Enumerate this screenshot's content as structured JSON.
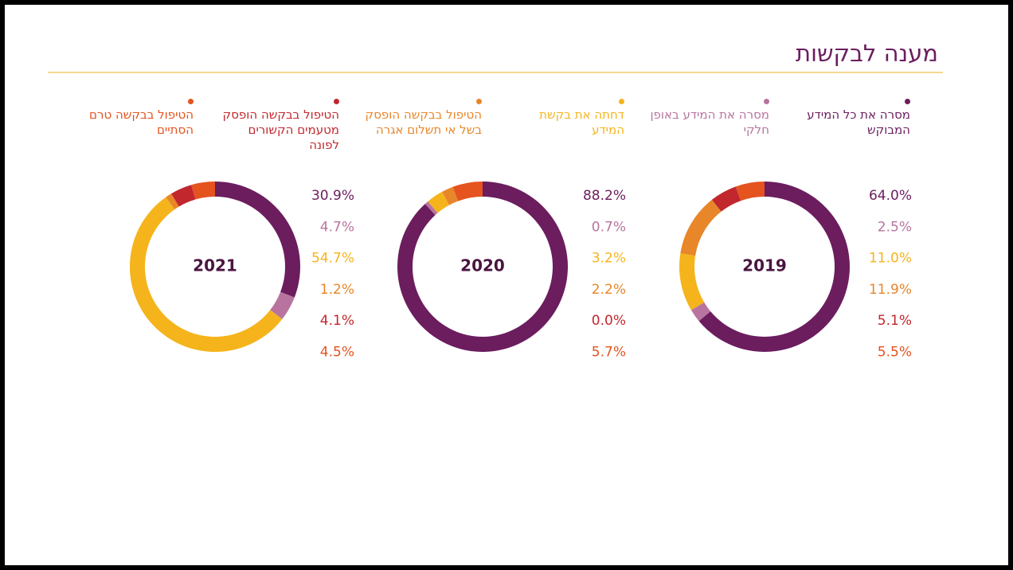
{
  "title": "מענה לבקשות",
  "legend": [
    {
      "name": "מסרה את כל המידע המבוקש",
      "color": "#6b1d5e"
    },
    {
      "name": "מסרה את המידע באופן חלקי",
      "color": "#b8749f"
    },
    {
      "name": "דחתה את בקשת המידע",
      "color": "#f5b41c"
    },
    {
      "name": "הטיפול בבקשה הופסק בשל אי תשלום אגרה",
      "color": "#e8862a"
    },
    {
      "name": "הטיפול בבקשה הופסק מטעמים הקשורים לפונה",
      "color": "#c1272d"
    },
    {
      "name": "הטיפול בבקשה טרם הסתיים",
      "color": "#e5531f"
    }
  ],
  "chart_data": [
    {
      "type": "donut",
      "title": "2019",
      "values": [
        64.0,
        2.5,
        11.0,
        11.9,
        5.1,
        5.5
      ],
      "value_labels": [
        "64.0%",
        "2.5%",
        "11.0%",
        "11.9%",
        "5.1%",
        "5.5%"
      ]
    },
    {
      "type": "donut",
      "title": "2020",
      "values": [
        88.2,
        0.7,
        3.2,
        2.2,
        0.0,
        5.7
      ],
      "value_labels": [
        "88.2%",
        "0.7%",
        "3.2%",
        "2.2%",
        "0.0%",
        "5.7%"
      ]
    },
    {
      "type": "donut",
      "title": "2021",
      "values": [
        30.9,
        4.7,
        54.7,
        1.2,
        4.1,
        4.5
      ],
      "value_labels": [
        "30.9%",
        "4.7%",
        "54.7%",
        "1.2%",
        "4.1%",
        "4.5%"
      ]
    }
  ]
}
